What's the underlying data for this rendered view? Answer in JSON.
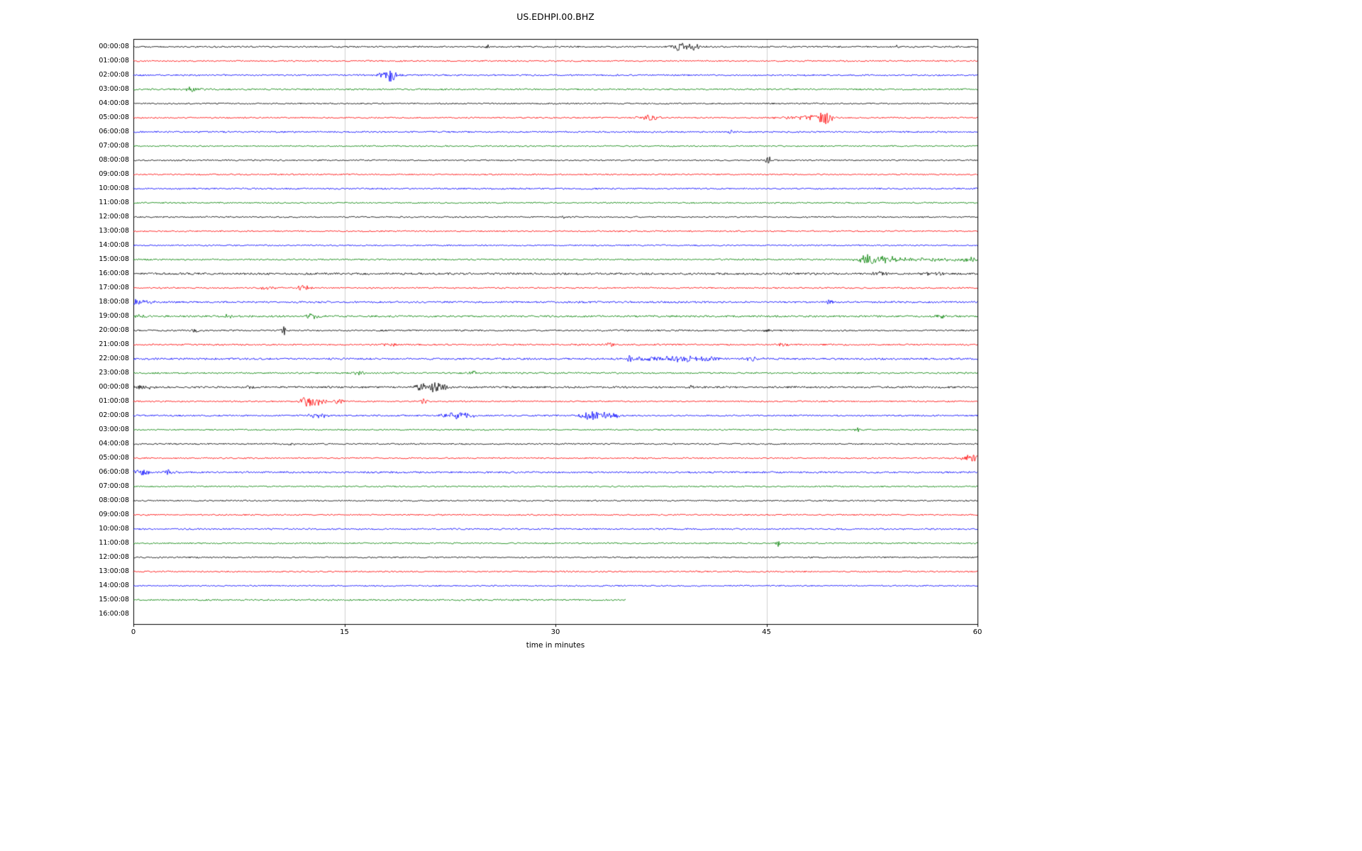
{
  "figure": {
    "background": "#ffffff",
    "title": "US.EDHPI.00.BHZ"
  },
  "chart_data": {
    "type": "line",
    "subtype": "helicorder-seismogram",
    "title": "US.EDHPI.00.BHZ",
    "xlabel": "time in minutes",
    "x_range": [
      0,
      60
    ],
    "x_ticks": [
      "0",
      "15",
      "30",
      "45",
      "60"
    ],
    "x_tick_values": [
      0,
      15,
      30,
      45,
      60
    ],
    "gridlines_minutes": [
      15,
      30,
      45
    ],
    "grid_color": "#cccccc",
    "axis_color": "#000000",
    "color_cycle": [
      "#000000",
      "#ff0000",
      "#0000ff",
      "#008000"
    ],
    "rows": [
      {
        "label": "00:00:08",
        "color": "#000000",
        "start": 0,
        "end": 60,
        "noise": 1.1,
        "events": [
          {
            "m": 25.3,
            "a": 2.5,
            "w": 0.2
          },
          {
            "m": 39.0,
            "a": 7,
            "w": 0.45
          },
          {
            "m": 39.9,
            "a": 6,
            "w": 0.35
          },
          {
            "m": 54.3,
            "a": 3,
            "w": 0.08
          }
        ]
      },
      {
        "label": "01:00:08",
        "color": "#ff0000",
        "start": 0,
        "end": 60,
        "noise": 1.0,
        "events": []
      },
      {
        "label": "02:00:08",
        "color": "#0000ff",
        "start": 0,
        "end": 60,
        "noise": 1.1,
        "events": [
          {
            "m": 17.8,
            "a": 4,
            "w": 0.3
          },
          {
            "m": 18.3,
            "a": 8,
            "w": 0.35
          }
        ]
      },
      {
        "label": "03:00:08",
        "color": "#008000",
        "start": 0,
        "end": 60,
        "noise": 1.1,
        "events": [
          {
            "m": 4.2,
            "a": 3.5,
            "w": 0.5
          }
        ]
      },
      {
        "label": "04:00:08",
        "color": "#000000",
        "start": 0,
        "end": 60,
        "noise": 1.0,
        "events": []
      },
      {
        "label": "05:00:08",
        "color": "#ff0000",
        "start": 0,
        "end": 60,
        "noise": 1.0,
        "events": [
          {
            "m": 36.6,
            "a": 4,
            "w": 0.5
          },
          {
            "m": 47.8,
            "a": 3,
            "w": 1.2
          },
          {
            "m": 49.1,
            "a": 9,
            "w": 0.4
          }
        ]
      },
      {
        "label": "06:00:08",
        "color": "#0000ff",
        "start": 0,
        "end": 60,
        "noise": 1.1,
        "events": [
          {
            "m": 42.5,
            "a": 2.5,
            "w": 0.15
          }
        ]
      },
      {
        "label": "07:00:08",
        "color": "#008000",
        "start": 0,
        "end": 60,
        "noise": 1.0,
        "events": []
      },
      {
        "label": "08:00:08",
        "color": "#000000",
        "start": 0,
        "end": 60,
        "noise": 1.0,
        "events": [
          {
            "m": 45.2,
            "a": 5,
            "w": 0.3
          }
        ]
      },
      {
        "label": "09:00:08",
        "color": "#ff0000",
        "start": 0,
        "end": 60,
        "noise": 1.0,
        "events": []
      },
      {
        "label": "10:00:08",
        "color": "#0000ff",
        "start": 0,
        "end": 60,
        "noise": 1.1,
        "events": []
      },
      {
        "label": "11:00:08",
        "color": "#008000",
        "start": 0,
        "end": 60,
        "noise": 1.0,
        "events": []
      },
      {
        "label": "12:00:08",
        "color": "#000000",
        "start": 0,
        "end": 60,
        "noise": 1.0,
        "events": [
          {
            "m": 30.6,
            "a": 2.5,
            "w": 0.1
          }
        ]
      },
      {
        "label": "13:00:08",
        "color": "#ff0000",
        "start": 0,
        "end": 60,
        "noise": 1.0,
        "events": []
      },
      {
        "label": "14:00:08",
        "color": "#0000ff",
        "start": 0,
        "end": 60,
        "noise": 1.0,
        "events": []
      },
      {
        "label": "15:00:08",
        "color": "#008000",
        "start": 0,
        "end": 60,
        "noise": 1.1,
        "events": [
          {
            "m": 52.2,
            "a": 8,
            "w": 0.5
          },
          {
            "m": 53.5,
            "a": 4,
            "w": 1.0
          },
          {
            "m": 57.0,
            "a": 2,
            "w": 3
          },
          {
            "m": 59.5,
            "a": 3,
            "w": 0.5
          }
        ]
      },
      {
        "label": "16:00:08",
        "color": "#000000",
        "start": 0,
        "end": 60,
        "noise": 1.4,
        "events": [
          {
            "m": 53.0,
            "a": 2.5,
            "w": 0.5
          },
          {
            "m": 57.0,
            "a": 2.5,
            "w": 0.5
          }
        ]
      },
      {
        "label": "17:00:08",
        "color": "#ff0000",
        "start": 0,
        "end": 60,
        "noise": 1.0,
        "events": [
          {
            "m": 9.6,
            "a": 3,
            "w": 0.4
          },
          {
            "m": 12.0,
            "a": 3.5,
            "w": 0.4
          }
        ]
      },
      {
        "label": "18:00:08",
        "color": "#0000ff",
        "start": 0,
        "end": 60,
        "noise": 1.3,
        "events": [
          {
            "m": 0.5,
            "a": 4,
            "w": 0.6
          },
          {
            "m": 49.5,
            "a": 5,
            "w": 0.15
          }
        ]
      },
      {
        "label": "19:00:08",
        "color": "#008000",
        "start": 0,
        "end": 60,
        "noise": 1.3,
        "events": [
          {
            "m": 0.6,
            "a": 3,
            "w": 0.4
          },
          {
            "m": 6.7,
            "a": 2.5,
            "w": 0.3
          },
          {
            "m": 12.6,
            "a": 3.5,
            "w": 0.4
          },
          {
            "m": 57.3,
            "a": 3,
            "w": 0.3
          }
        ]
      },
      {
        "label": "20:00:08",
        "color": "#000000",
        "start": 0,
        "end": 60,
        "noise": 1.1,
        "events": [
          {
            "m": 4.4,
            "a": 2.5,
            "w": 0.2
          },
          {
            "m": 10.7,
            "a": 6,
            "w": 0.12
          },
          {
            "m": 45.0,
            "a": 2.5,
            "w": 0.2
          }
        ]
      },
      {
        "label": "21:00:08",
        "color": "#ff0000",
        "start": 0,
        "end": 60,
        "noise": 1.1,
        "events": [
          {
            "m": 18.2,
            "a": 2.5,
            "w": 0.3
          },
          {
            "m": 33.9,
            "a": 3,
            "w": 0.3
          },
          {
            "m": 46.2,
            "a": 2.5,
            "w": 0.3
          }
        ]
      },
      {
        "label": "22:00:08",
        "color": "#0000ff",
        "start": 0,
        "end": 60,
        "noise": 1.3,
        "events": [
          {
            "m": 35.3,
            "a": 7,
            "w": 0.15
          },
          {
            "m": 36.7,
            "a": 3.5,
            "w": 0.8
          },
          {
            "m": 38.8,
            "a": 4.5,
            "w": 1.2
          },
          {
            "m": 40.6,
            "a": 3.5,
            "w": 0.8
          },
          {
            "m": 44.0,
            "a": 2.5,
            "w": 0.5
          }
        ]
      },
      {
        "label": "23:00:08",
        "color": "#008000",
        "start": 0,
        "end": 60,
        "noise": 1.1,
        "events": [
          {
            "m": 16.0,
            "a": 2.5,
            "w": 0.3
          },
          {
            "m": 24.2,
            "a": 2.5,
            "w": 0.4
          }
        ]
      },
      {
        "label": "00:00:08",
        "color": "#000000",
        "start": 0,
        "end": 60,
        "noise": 1.3,
        "events": [
          {
            "m": 1.0,
            "a": 2.5,
            "w": 1.0
          },
          {
            "m": 8.2,
            "a": 2.5,
            "w": 0.2
          },
          {
            "m": 20.5,
            "a": 6,
            "w": 0.3
          },
          {
            "m": 21.4,
            "a": 7,
            "w": 0.35
          },
          {
            "m": 22.1,
            "a": 4,
            "w": 0.3
          },
          {
            "m": 39.7,
            "a": 2.5,
            "w": 0.15
          }
        ]
      },
      {
        "label": "01:00:08",
        "color": "#ff0000",
        "start": 0,
        "end": 60,
        "noise": 1.0,
        "events": [
          {
            "m": 12.3,
            "a": 6,
            "w": 0.4
          },
          {
            "m": 13.1,
            "a": 5,
            "w": 0.5
          },
          {
            "m": 14.6,
            "a": 4,
            "w": 0.3
          },
          {
            "m": 20.7,
            "a": 3.5,
            "w": 0.25
          }
        ]
      },
      {
        "label": "02:00:08",
        "color": "#0000ff",
        "start": 0,
        "end": 60,
        "noise": 1.1,
        "events": [
          {
            "m": 13.1,
            "a": 3.5,
            "w": 0.5
          },
          {
            "m": 23.2,
            "a": 5,
            "w": 0.8
          },
          {
            "m": 32.8,
            "a": 6,
            "w": 0.8
          },
          {
            "m": 33.9,
            "a": 4,
            "w": 0.5
          }
        ]
      },
      {
        "label": "03:00:08",
        "color": "#008000",
        "start": 0,
        "end": 60,
        "noise": 1.0,
        "events": [
          {
            "m": 51.5,
            "a": 2.5,
            "w": 0.15
          }
        ]
      },
      {
        "label": "04:00:08",
        "color": "#000000",
        "start": 0,
        "end": 60,
        "noise": 1.0,
        "events": [
          {
            "m": 11.2,
            "a": 2.5,
            "w": 0.2
          }
        ]
      },
      {
        "label": "05:00:08",
        "color": "#ff0000",
        "start": 0,
        "end": 60,
        "noise": 1.0,
        "events": [
          {
            "m": 59.5,
            "a": 6,
            "w": 0.4
          }
        ]
      },
      {
        "label": "06:00:08",
        "color": "#0000ff",
        "start": 0,
        "end": 60,
        "noise": 1.2,
        "events": [
          {
            "m": 0.5,
            "a": 5,
            "w": 0.5
          },
          {
            "m": 2.6,
            "a": 4,
            "w": 0.3
          }
        ]
      },
      {
        "label": "07:00:08",
        "color": "#008000",
        "start": 0,
        "end": 60,
        "noise": 1.0,
        "events": []
      },
      {
        "label": "08:00:08",
        "color": "#000000",
        "start": 0,
        "end": 60,
        "noise": 1.0,
        "events": []
      },
      {
        "label": "09:00:08",
        "color": "#ff0000",
        "start": 0,
        "end": 60,
        "noise": 1.0,
        "events": []
      },
      {
        "label": "10:00:08",
        "color": "#0000ff",
        "start": 0,
        "end": 60,
        "noise": 1.1,
        "events": []
      },
      {
        "label": "11:00:08",
        "color": "#008000",
        "start": 0,
        "end": 60,
        "noise": 1.0,
        "events": [
          {
            "m": 45.8,
            "a": 7,
            "w": 0.1
          }
        ]
      },
      {
        "label": "12:00:08",
        "color": "#000000",
        "start": 0,
        "end": 60,
        "noise": 1.0,
        "events": []
      },
      {
        "label": "13:00:08",
        "color": "#ff0000",
        "start": 0,
        "end": 60,
        "noise": 1.0,
        "events": []
      },
      {
        "label": "14:00:08",
        "color": "#0000ff",
        "start": 0,
        "end": 60,
        "noise": 1.0,
        "events": []
      },
      {
        "label": "15:00:08",
        "color": "#008000",
        "start": 0,
        "end": 35,
        "noise": 1.1,
        "events": []
      },
      {
        "label": "16:00:08",
        "color": "#000000",
        "start": 0,
        "end": 0,
        "noise": 0,
        "events": []
      }
    ]
  }
}
